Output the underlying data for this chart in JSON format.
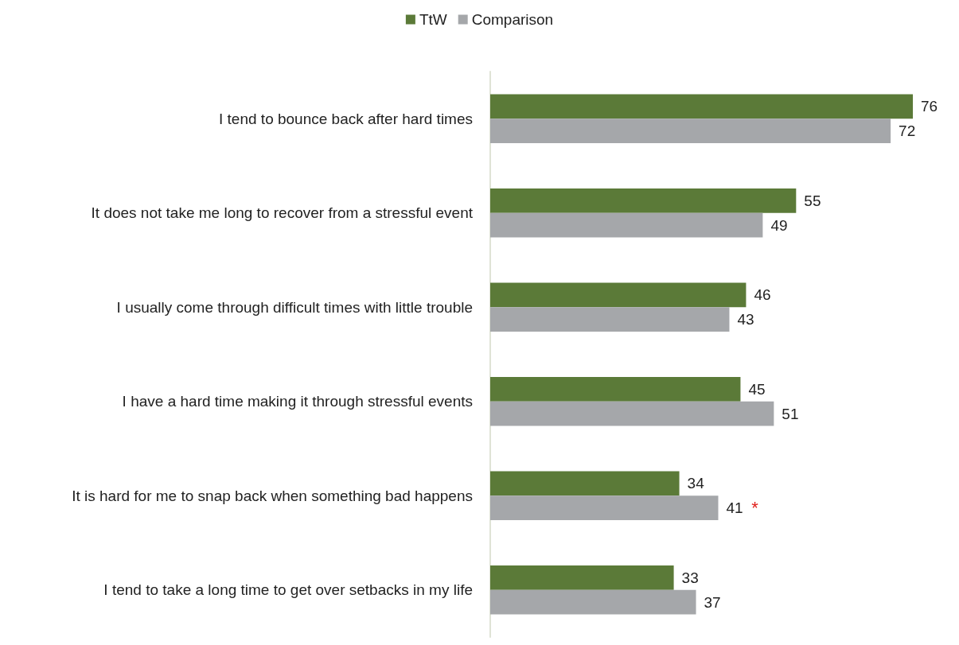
{
  "chart_data": {
    "type": "bar",
    "orientation": "horizontal",
    "categories": [
      "I tend to bounce back after hard times",
      "It does not take me long to recover from a stressful event",
      "I usually come through difficult times with little trouble",
      "I have a hard time making it through stressful events",
      "It is hard for me to snap back when something bad happens",
      "I tend to take a long time to get over setbacks in my life"
    ],
    "series": [
      {
        "name": "TtW",
        "color": "#5b7a38",
        "values": [
          76,
          55,
          46,
          45,
          34,
          33
        ]
      },
      {
        "name": "Comparison",
        "color": "#a5a7aa",
        "values": [
          72,
          49,
          43,
          51,
          41,
          37
        ]
      }
    ],
    "data_labels": true,
    "legend": "top",
    "grid": false,
    "annotations": [
      {
        "text": "*",
        "x": 41,
        "y": "It is hard for me to snap back when something bad happens"
      }
    ]
  }
}
